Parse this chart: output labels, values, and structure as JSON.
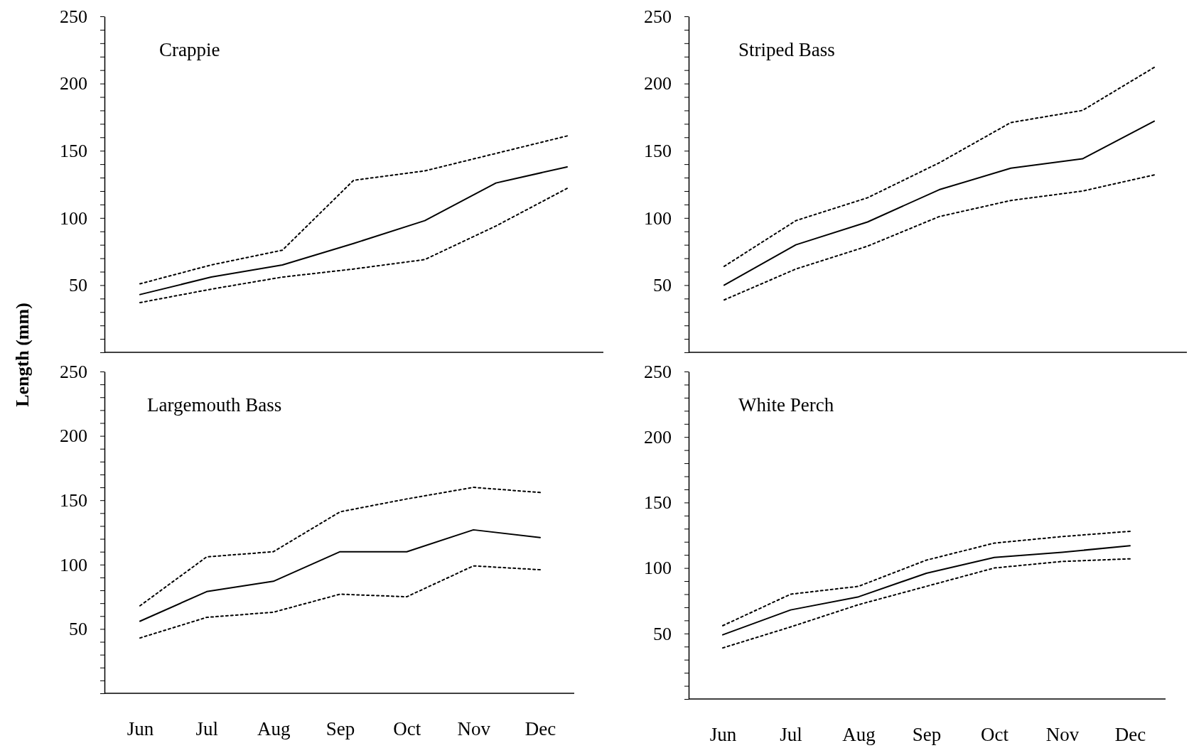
{
  "chart_data": [
    {
      "type": "line",
      "title": "Crappie",
      "ylabel": "Length (mm)",
      "categories": [
        null,
        null,
        null,
        null,
        null,
        null,
        null
      ],
      "ylim": [
        0,
        250
      ],
      "yticks": [
        {
          "value": 0,
          "label": null
        },
        {
          "value": 10,
          "label": null
        },
        {
          "value": 20,
          "label": null
        },
        {
          "value": 30,
          "label": null
        },
        {
          "value": 40,
          "label": null
        },
        50,
        {
          "value": 60,
          "label": null
        },
        {
          "value": 70,
          "label": null
        },
        {
          "value": 80,
          "label": null
        },
        {
          "value": 90,
          "label": null
        },
        100,
        {
          "value": 110,
          "label": null
        },
        {
          "value": 120,
          "label": null
        },
        {
          "value": 130,
          "label": null
        },
        {
          "value": 140,
          "label": null
        },
        150,
        {
          "value": 160,
          "label": null
        },
        {
          "value": 170,
          "label": null
        },
        {
          "value": 180,
          "label": null
        },
        {
          "value": 190,
          "label": null
        },
        200,
        {
          "value": 210,
          "label": null
        },
        {
          "value": 220,
          "label": null
        },
        {
          "value": 230,
          "label": null
        },
        {
          "value": 240,
          "label": null
        },
        250
      ],
      "series": [
        {
          "color": "#000000",
          "line_style": "solid",
          "values": [
            43,
            56,
            65,
            81,
            98,
            126,
            138
          ]
        },
        {
          "color": "#000000",
          "line_style": "dotted",
          "values": [
            51,
            65,
            76,
            128,
            135,
            148,
            161
          ]
        },
        {
          "color": "#000000",
          "line_style": "dotted",
          "values": [
            37,
            47,
            56,
            62,
            69,
            94,
            122
          ]
        }
      ]
    },
    {
      "type": "line",
      "title": "Striped Bass",
      "categories": [
        null,
        null,
        null,
        null,
        null,
        null,
        null
      ],
      "ylim": [
        0,
        250
      ],
      "yticks": [
        {
          "value": 0,
          "label": null
        },
        {
          "value": 10,
          "label": null
        },
        {
          "value": 20,
          "label": null
        },
        {
          "value": 30,
          "label": null
        },
        {
          "value": 40,
          "label": null
        },
        50,
        {
          "value": 60,
          "label": null
        },
        {
          "value": 70,
          "label": null
        },
        {
          "value": 80,
          "label": null
        },
        {
          "value": 90,
          "label": null
        },
        100,
        {
          "value": 110,
          "label": null
        },
        {
          "value": 120,
          "label": null
        },
        {
          "value": 130,
          "label": null
        },
        {
          "value": 140,
          "label": null
        },
        150,
        {
          "value": 160,
          "label": null
        },
        {
          "value": 170,
          "label": null
        },
        {
          "value": 180,
          "label": null
        },
        {
          "value": 190,
          "label": null
        },
        200,
        {
          "value": 210,
          "label": null
        },
        {
          "value": 220,
          "label": null
        },
        {
          "value": 230,
          "label": null
        },
        {
          "value": 240,
          "label": null
        },
        250
      ],
      "series": [
        {
          "color": "#000000",
          "line_style": "solid",
          "values": [
            50,
            80,
            97,
            121,
            137,
            144,
            172
          ]
        },
        {
          "color": "#000000",
          "line_style": "dotted",
          "values": [
            64,
            98,
            115,
            141,
            171,
            180,
            212
          ]
        },
        {
          "color": "#000000",
          "line_style": "dotted",
          "values": [
            39,
            62,
            79,
            101,
            113,
            120,
            132
          ]
        }
      ]
    },
    {
      "type": "line",
      "title": "Largemouth Bass",
      "categories": [
        "Jun",
        "Jul",
        "Aug",
        "Sep",
        "Oct",
        "Nov",
        "Dec"
      ],
      "ylim": [
        0,
        250
      ],
      "yticks": [
        {
          "value": 0,
          "label": null
        },
        {
          "value": 10,
          "label": null
        },
        {
          "value": 20,
          "label": null
        },
        {
          "value": 30,
          "label": null
        },
        {
          "value": 40,
          "label": null
        },
        50,
        {
          "value": 60,
          "label": null
        },
        {
          "value": 70,
          "label": null
        },
        {
          "value": 80,
          "label": null
        },
        {
          "value": 90,
          "label": null
        },
        100,
        {
          "value": 110,
          "label": null
        },
        {
          "value": 120,
          "label": null
        },
        {
          "value": 130,
          "label": null
        },
        {
          "value": 140,
          "label": null
        },
        150,
        {
          "value": 160,
          "label": null
        },
        {
          "value": 170,
          "label": null
        },
        {
          "value": 180,
          "label": null
        },
        {
          "value": 190,
          "label": null
        },
        200,
        {
          "value": 210,
          "label": null
        },
        {
          "value": 220,
          "label": null
        },
        {
          "value": 230,
          "label": null
        },
        {
          "value": 240,
          "label": null
        },
        250
      ],
      "series": [
        {
          "color": "#000000",
          "line_style": "solid",
          "values": [
            56,
            79,
            87,
            110,
            110,
            127,
            121
          ]
        },
        {
          "color": "#000000",
          "line_style": "dotted",
          "values": [
            68,
            106,
            110,
            141,
            151,
            160,
            156
          ]
        },
        {
          "color": "#000000",
          "line_style": "dotted",
          "values": [
            43,
            59,
            63,
            77,
            75,
            99,
            96
          ]
        }
      ]
    },
    {
      "type": "line",
      "title": "White Perch",
      "categories": [
        "Jun",
        "Jul",
        "Aug",
        "Sep",
        "Oct",
        "Nov",
        "Dec"
      ],
      "ylim": [
        0,
        250
      ],
      "yticks": [
        {
          "value": 0,
          "label": null
        },
        {
          "value": 10,
          "label": null
        },
        {
          "value": 20,
          "label": null
        },
        {
          "value": 30,
          "label": null
        },
        {
          "value": 40,
          "label": null
        },
        50,
        {
          "value": 60,
          "label": null
        },
        {
          "value": 70,
          "label": null
        },
        {
          "value": 80,
          "label": null
        },
        {
          "value": 90,
          "label": null
        },
        100,
        {
          "value": 110,
          "label": null
        },
        {
          "value": 120,
          "label": null
        },
        {
          "value": 130,
          "label": null
        },
        {
          "value": 140,
          "label": null
        },
        150,
        {
          "value": 160,
          "label": null
        },
        {
          "value": 170,
          "label": null
        },
        {
          "value": 180,
          "label": null
        },
        {
          "value": 190,
          "label": null
        },
        200,
        {
          "value": 210,
          "label": null
        },
        {
          "value": 220,
          "label": null
        },
        {
          "value": 230,
          "label": null
        },
        {
          "value": 240,
          "label": null
        },
        250
      ],
      "series": [
        {
          "color": "#000000",
          "line_style": "solid",
          "values": [
            49,
            68,
            78,
            96,
            108,
            112,
            117
          ]
        },
        {
          "color": "#000000",
          "line_style": "dotted",
          "values": [
            56,
            80,
            86,
            106,
            119,
            124,
            128
          ]
        },
        {
          "color": "#000000",
          "line_style": "dotted",
          "values": [
            39,
            55,
            72,
            86,
            100,
            105,
            107
          ]
        }
      ]
    }
  ]
}
